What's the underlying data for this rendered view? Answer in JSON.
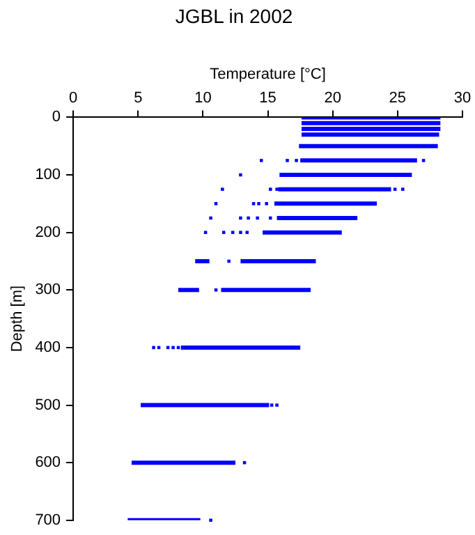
{
  "chart_data": {
    "type": "line",
    "title": "JGBL in 2002",
    "xlabel": "Temperature [°C]",
    "ylabel": "Depth [m]",
    "xlim": [
      0,
      30
    ],
    "xticks": [
      0,
      5,
      10,
      15,
      20,
      25,
      30
    ],
    "ylim": [
      700,
      0
    ],
    "yticks": [
      0,
      100,
      200,
      300,
      400,
      500,
      600,
      700
    ],
    "grid": false,
    "legend": false,
    "marker": "none",
    "line_style": "solid",
    "series": [
      {
        "color": "#0000ff",
        "x": [
          17.6,
          28.3
        ],
        "values": [
          0,
          0
        ]
      },
      {
        "color": "#0000ff",
        "x": [
          17.6,
          28.3
        ],
        "values": [
          10,
          10
        ]
      },
      {
        "color": "#0000ff",
        "x": [
          17.6,
          28.3
        ],
        "values": [
          20,
          20
        ]
      },
      {
        "color": "#0000ff",
        "x": [
          17.6,
          28.2
        ],
        "values": [
          30,
          30
        ]
      },
      {
        "color": "#0000ff",
        "x": [
          17.4,
          28.1
        ],
        "values": [
          50,
          50
        ]
      },
      {
        "color": "#0000ff",
        "x": [
          17.5,
          26.5
        ],
        "values": [
          75,
          75
        ]
      },
      {
        "color": "#0000ff",
        "x": [
          15.9,
          26.1
        ],
        "values": [
          100,
          100
        ]
      },
      {
        "color": "#0000ff",
        "x": [
          15.8,
          24.5
        ],
        "values": [
          125,
          125
        ]
      },
      {
        "color": "#0000ff",
        "x": [
          15.5,
          23.4
        ],
        "values": [
          150,
          150
        ]
      },
      {
        "color": "#0000ff",
        "x": [
          15.7,
          21.9
        ],
        "values": [
          175,
          175
        ]
      },
      {
        "color": "#0000ff",
        "x": [
          14.6,
          20.7
        ],
        "values": [
          200,
          200
        ]
      },
      {
        "color": "#0000ff",
        "x": [
          9.4,
          10.5
        ],
        "values": [
          250,
          250
        ]
      },
      {
        "color": "#0000ff",
        "x": [
          12.9,
          18.7
        ],
        "values": [
          250,
          250
        ]
      },
      {
        "color": "#0000ff",
        "x": [
          8.1,
          9.7
        ],
        "values": [
          300,
          300
        ]
      },
      {
        "color": "#0000ff",
        "x": [
          11.4,
          18.3
        ],
        "values": [
          300,
          300
        ]
      },
      {
        "color": "#0000ff",
        "x": [
          8.3,
          17.5
        ],
        "values": [
          400,
          400
        ]
      },
      {
        "color": "#0000ff",
        "x": [
          5.2,
          15.1
        ],
        "values": [
          500,
          500
        ]
      },
      {
        "color": "#0000ff",
        "x": [
          4.5,
          12.5
        ],
        "values": [
          600,
          600
        ]
      },
      {
        "color": "#0000ff",
        "x": [
          4.2,
          9.8
        ],
        "values": [
          700,
          700
        ]
      },
      {
        "type": "scatter",
        "marker": "square",
        "color": "#0000ff",
        "x": [
          14.5,
          16.5,
          17.2,
          27.0,
          12.9,
          11.5,
          15.2,
          15.7,
          24.8,
          25.4,
          11.0,
          13.9,
          14.3,
          14.9,
          10.6,
          12.9,
          13.5,
          14.2,
          15.2,
          10.2,
          11.6,
          12.3,
          12.9,
          13.4,
          12.0,
          11.0,
          6.2,
          6.6,
          7.3,
          7.7,
          8.1,
          15.3,
          15.7,
          13.2,
          10.6
        ],
        "values": [
          75,
          75,
          75,
          75,
          100,
          125,
          125,
          125,
          125,
          125,
          150,
          150,
          150,
          150,
          175,
          175,
          175,
          175,
          175,
          200,
          200,
          200,
          200,
          200,
          250,
          300,
          400,
          400,
          400,
          400,
          400,
          500,
          500,
          600,
          700
        ]
      }
    ]
  }
}
